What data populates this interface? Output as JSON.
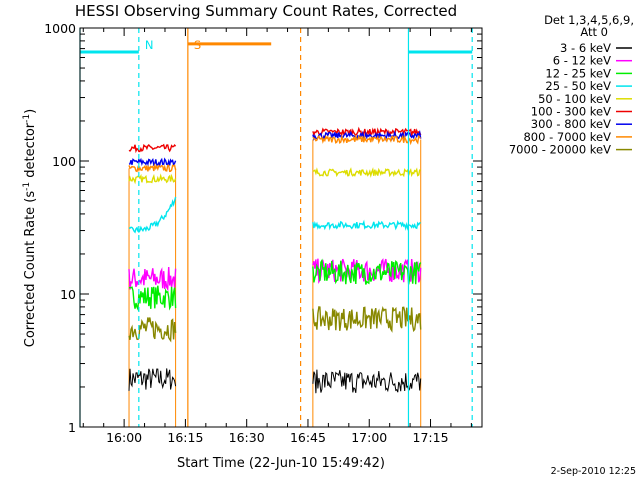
{
  "chart_data": {
    "type": "line",
    "title": "HESSI Observing Summary Count Rates, Corrected",
    "xlabel": "Start Time (22-Jun-10 15:49:42)",
    "ylabel": "Corrected Count Rate (s",
    "ylabel_sup1": "-1",
    "ylabel_mid": " detector",
    "ylabel_sup2": "-1",
    "ylabel_end": ")",
    "y_scale": "log",
    "ylim": [
      1,
      1000
    ],
    "xlim_minutes": [
      15.82,
      17.46
    ],
    "x_tick_labels": [
      "16:00",
      "16:15",
      "16:30",
      "16:45",
      "17:00",
      "17:15"
    ],
    "x_tick_minutes": [
      16.0,
      16.25,
      16.5,
      16.75,
      17.0,
      17.25
    ],
    "y_tick_labels": [
      "1",
      "10",
      "100",
      "1000"
    ],
    "y_tick_values": [
      1,
      10,
      100,
      1000
    ],
    "legend_header": [
      "Det 1,3,4,5,6,9,",
      "Att 0"
    ],
    "legend_placement": "right",
    "series": [
      {
        "name": "3 - 6 keV",
        "color": "#000000"
      },
      {
        "name": "6 - 12 keV",
        "color": "#ff00ff"
      },
      {
        "name": "12 - 25 keV",
        "color": "#00ee00"
      },
      {
        "name": "25 - 50 keV",
        "color": "#00e5ee"
      },
      {
        "name": "50 - 100 keV",
        "color": "#dddd00"
      },
      {
        "name": "100 - 300 keV",
        "color": "#ee0000"
      },
      {
        "name": "300 - 800 keV",
        "color": "#0000ee"
      },
      {
        "name": "800 - 7000 keV",
        "color": "#ff8800"
      },
      {
        "name": "7000 - 20000 keV",
        "color": "#888800"
      }
    ],
    "segments": [
      {
        "start": 16.02,
        "end": 16.21,
        "levels": {
          "3 - 6 keV": 2.3,
          "6 - 12 keV": 13,
          "12 - 25 keV": 9.5,
          "25 - 50 keV": 30,
          "50 - 100 keV": 73,
          "100 - 300 keV": 125,
          "300 - 800 keV": 98,
          "800 - 7000 keV": 88,
          "7000 - 20000 keV": 5.5
        }
      },
      {
        "start": 16.77,
        "end": 17.21,
        "levels": {
          "3 - 6 keV": 2.2,
          "6 - 12 keV": 15,
          "12 - 25 keV": 14.5,
          "25 - 50 keV": 33,
          "50 - 100 keV": 82,
          "100 - 300 keV": 165,
          "300 - 800 keV": 155,
          "800 - 7000 keV": 145,
          "7000 - 20000 keV": 6.5
        }
      }
    ],
    "night_bars": [
      {
        "label": "",
        "start": 15.82,
        "end": 16.06,
        "level": 660,
        "color": "#00e5ee"
      },
      {
        "label": "",
        "start": 17.16,
        "end": 17.42,
        "level": 660,
        "color": "#00e5ee"
      },
      {
        "label": "",
        "start": 16.26,
        "end": 16.6,
        "level": 760,
        "color": "#ff8800"
      }
    ],
    "markers": [
      {
        "label": "N",
        "minute": 16.06,
        "color": "#00e5ee",
        "style": "dashed"
      },
      {
        "label": "",
        "minute": 17.42,
        "color": "#00e5ee",
        "style": "dashed"
      },
      {
        "label": "",
        "minute": 17.16,
        "color": "#00e5ee",
        "style": "solid"
      },
      {
        "label": "",
        "minute": 15.82,
        "color": "#00e5ee",
        "style": "solid"
      },
      {
        "label": "S",
        "minute": 16.26,
        "color": "#ff8800",
        "style": "solid"
      },
      {
        "label": "",
        "minute": 16.72,
        "color": "#ff8800",
        "style": "dashed"
      }
    ],
    "grid": false,
    "footer": "2-Sep-2010 12:25"
  }
}
